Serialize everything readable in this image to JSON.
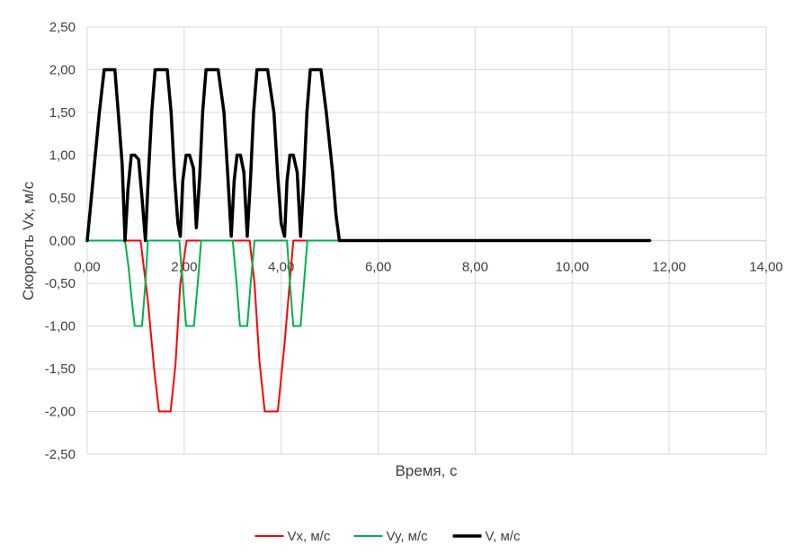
{
  "chart_data": {
    "type": "line",
    "title": "",
    "xlabel": "Время, с",
    "ylabel": "Скорость Vx, м/с",
    "xlim": [
      0,
      14
    ],
    "ylim": [
      -2.5,
      2.5
    ],
    "x_ticks": [
      "0,00",
      "2,00",
      "4,00",
      "6,00",
      "8,00",
      "10,00",
      "12,00",
      "14,00"
    ],
    "y_ticks": [
      "2,50",
      "2,00",
      "1,50",
      "1,00",
      "0,50",
      "0,00",
      "-0,50",
      "-1,00",
      "-1,50",
      "-2,00",
      "-2,50"
    ],
    "grid": true,
    "legend_position": "bottom",
    "series": [
      {
        "name": "Vx, м/с",
        "color": "#ff0000",
        "x": [
          0,
          0.78,
          1.1,
          1.25,
          1.38,
          1.48,
          1.6,
          1.72,
          1.82,
          1.92,
          2.05,
          3.35,
          3.45,
          3.55,
          3.66,
          3.77,
          3.93,
          4.07,
          4.16,
          4.25,
          4.4,
          11.6
        ],
        "y": [
          0,
          0,
          0,
          -0.7,
          -1.5,
          -2.0,
          -2.0,
          -2.0,
          -1.45,
          -0.5,
          0,
          0,
          -0.5,
          -1.4,
          -2.0,
          -2.0,
          -2.0,
          -1.2,
          -0.6,
          0,
          0,
          0
        ]
      },
      {
        "name": "Vy, м/с",
        "color": "#00b050",
        "x": [
          0,
          0.78,
          0.85,
          0.92,
          0.98,
          1.05,
          1.13,
          1.2,
          1.25,
          1.9,
          1.97,
          2.04,
          2.12,
          2.2,
          2.28,
          2.35,
          3.0,
          3.08,
          3.15,
          3.22,
          3.3,
          3.37,
          3.45,
          4.12,
          4.18,
          4.25,
          4.32,
          4.4,
          4.47,
          4.54,
          11.6
        ],
        "y": [
          0,
          0,
          -0.3,
          -0.7,
          -1.0,
          -1.0,
          -1.0,
          -0.5,
          0,
          0,
          -0.5,
          -1.0,
          -1.0,
          -1.0,
          -0.5,
          0,
          0,
          -0.5,
          -1.0,
          -1.0,
          -1.0,
          -0.5,
          0,
          0,
          -0.5,
          -1.0,
          -1.0,
          -1.0,
          -0.5,
          0,
          0
        ]
      },
      {
        "name": "V, м/с",
        "color": "#000000",
        "x": [
          0,
          0.06,
          0.15,
          0.25,
          0.35,
          0.5,
          0.57,
          0.64,
          0.72,
          0.78,
          0.84,
          0.91,
          0.98,
          1.06,
          1.13,
          1.2,
          1.26,
          1.33,
          1.4,
          1.48,
          1.55,
          1.65,
          1.73,
          1.8,
          1.87,
          1.92,
          1.97,
          2.04,
          2.11,
          2.19,
          2.25,
          2.32,
          2.38,
          2.45,
          2.53,
          2.6,
          2.7,
          2.82,
          2.9,
          2.97,
          3.03,
          3.09,
          3.16,
          3.23,
          3.3,
          3.37,
          3.43,
          3.5,
          3.56,
          3.63,
          3.72,
          3.85,
          3.93,
          4.0,
          4.07,
          4.12,
          4.18,
          4.25,
          4.33,
          4.4,
          4.47,
          4.53,
          4.6,
          4.68,
          4.74,
          4.82,
          4.93,
          5.06,
          5.13,
          5.2,
          5.27,
          5.3,
          11.6
        ],
        "y": [
          0,
          0.35,
          0.9,
          1.5,
          2.0,
          2.0,
          2.0,
          1.5,
          0.9,
          0,
          0.6,
          1.0,
          1.0,
          0.95,
          0.5,
          0,
          0.75,
          1.5,
          2.0,
          2.0,
          2.0,
          2.0,
          1.5,
          0.75,
          0.2,
          0.05,
          0.7,
          1.0,
          1.0,
          0.85,
          0.15,
          0.75,
          1.5,
          2.0,
          2.0,
          2.0,
          2.0,
          1.5,
          0.75,
          0.05,
          0.7,
          1.0,
          1.0,
          0.8,
          0.05,
          0.75,
          1.5,
          2.0,
          2.0,
          2.0,
          2.0,
          1.5,
          0.75,
          0.2,
          0.05,
          0.7,
          1.0,
          1.0,
          0.8,
          0.05,
          0.75,
          1.5,
          2.0,
          2.0,
          2.0,
          2.0,
          1.5,
          0.8,
          0.3,
          0,
          0,
          0,
          0
        ]
      }
    ]
  }
}
